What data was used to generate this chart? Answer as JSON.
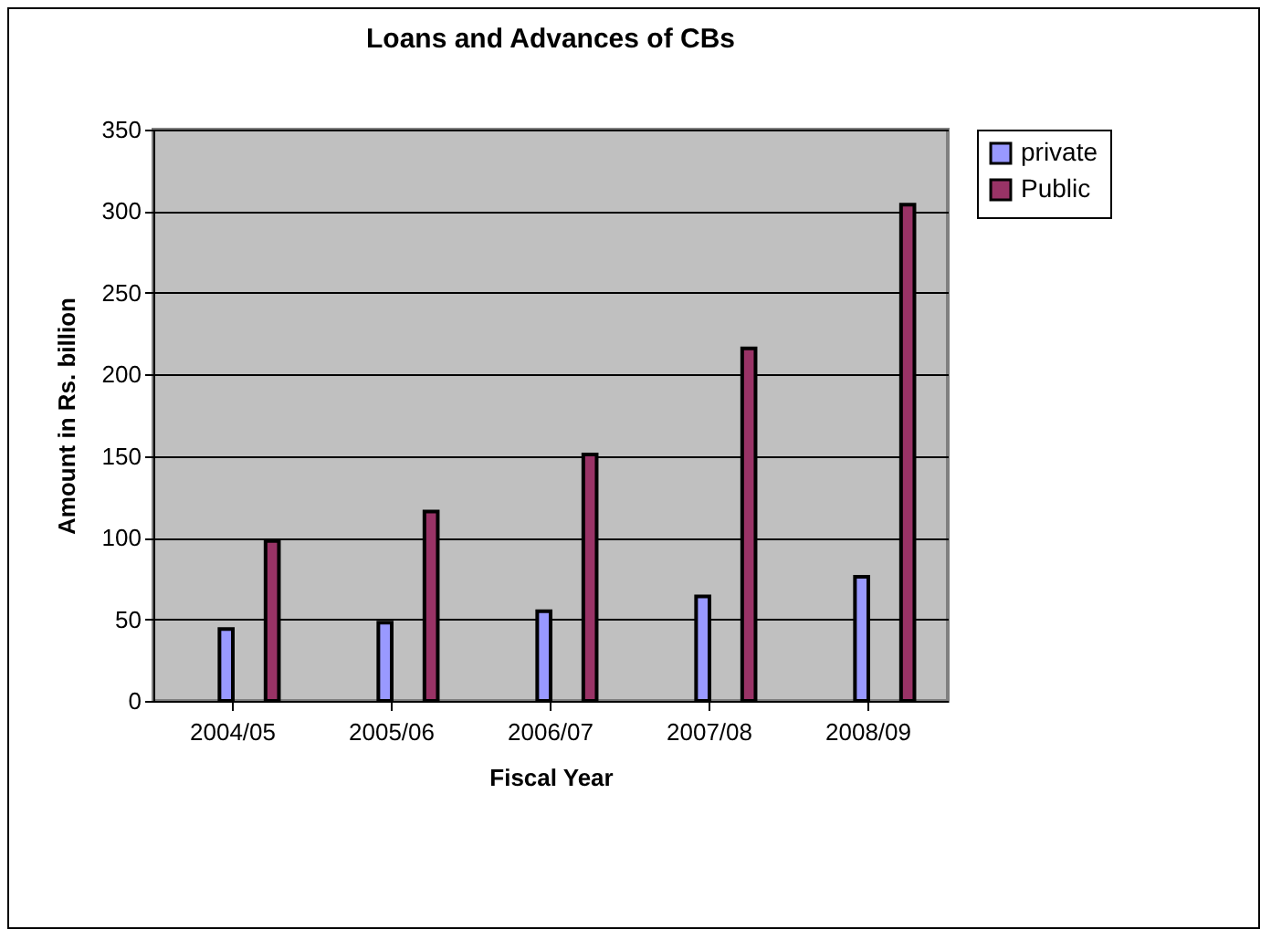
{
  "chart_data": {
    "type": "bar",
    "title": "Loans and Advances of CBs",
    "xlabel": "Fiscal Year",
    "ylabel": "Amount in Rs. billion",
    "categories": [
      "2004/05",
      "2005/06",
      "2006/07",
      "2007/08",
      "2008/09"
    ],
    "series": [
      {
        "name": "private",
        "color": "#9999ff",
        "values": [
          44,
          48,
          55,
          64,
          76
        ]
      },
      {
        "name": "Public",
        "color": "#993366",
        "values": [
          98,
          116,
          151,
          216,
          304
        ]
      }
    ],
    "ylim": [
      0,
      350
    ],
    "yticks": [
      0,
      50,
      100,
      150,
      200,
      250,
      300,
      350
    ],
    "grid": "y",
    "legend": "right"
  }
}
